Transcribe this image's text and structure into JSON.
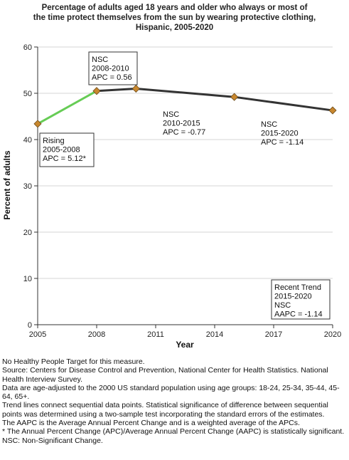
{
  "chart_data": {
    "type": "line",
    "title": "Percentage of adults aged 18 years and older who always or most of the time protect themselves from the sun by wearing protective clothing, Hispanic,  2005-2020",
    "title_lines": [
      "Percentage of adults aged 18 years and older who always or most of",
      "the time protect themselves from the sun by wearing protective clothing,",
      "Hispanic,  2005-2020"
    ],
    "xlabel": "Year",
    "ylabel": "Percent of adults",
    "xlim": [
      2005,
      2020
    ],
    "ylim": [
      0,
      60
    ],
    "xticks": [
      2005,
      2008,
      2011,
      2014,
      2017,
      2020
    ],
    "xtick_labels": [
      "2005",
      "2008",
      "2011",
      "2014",
      "2017",
      "2020"
    ],
    "yticks": [
      0,
      10,
      20,
      30,
      40,
      50,
      60
    ],
    "ytick_labels": [
      "0",
      "10",
      "20",
      "30",
      "40",
      "50",
      "60"
    ],
    "grid": "horizontal",
    "points": [
      {
        "x": 2005,
        "y": 43.4
      },
      {
        "x": 2008,
        "y": 50.5
      },
      {
        "x": 2010,
        "y": 51.0
      },
      {
        "x": 2015,
        "y": 49.2
      },
      {
        "x": 2020,
        "y": 46.3
      }
    ],
    "segments": [
      {
        "from": 2005,
        "to": 2008,
        "color": "#66cc55",
        "label_lines": [
          "Rising",
          "2005-2008",
          "APC =  5.12*"
        ],
        "boxed": true
      },
      {
        "from": 2008,
        "to": 2010,
        "color": "#333333",
        "label_lines": [
          "NSC",
          "2008-2010",
          "APC =  0.56"
        ],
        "boxed": true
      },
      {
        "from": 2010,
        "to": 2015,
        "color": "#333333",
        "label_lines": [
          "NSC",
          "2010-2015",
          "APC = -0.77"
        ],
        "boxed": false
      },
      {
        "from": 2015,
        "to": 2020,
        "color": "#333333",
        "label_lines": [
          "NSC",
          "2015-2020",
          "APC = -1.14"
        ],
        "boxed": false
      }
    ],
    "recent_trend_lines": [
      "Recent Trend",
      "2015-2020",
      "NSC",
      "AAPC = -1.14"
    ],
    "marker_color": "#c8872e",
    "marker_shape": "diamond"
  },
  "notes": [
    "No Healthy People Target for this measure.",
    "Source: Centers for Disease Control and Prevention, National Center for Health Statistics. National Health Interview Survey.",
    "Data are age-adjusted to the 2000 US standard population using age groups: 18-24, 25-34, 35-44, 45-64, 65+.",
    "Trend lines connect sequential data points. Statistical significance of difference between sequential points was determined using a two-sample test incorporating the standard errors of the estimates.",
    "The AAPC is the Average Annual Percent Change and is a weighted average of the APCs.",
    "* The Annual Percent Change (APC)/Average Annual Percent Change (AAPC) is statistically significant.",
    "NSC: Non-Significant Change."
  ]
}
